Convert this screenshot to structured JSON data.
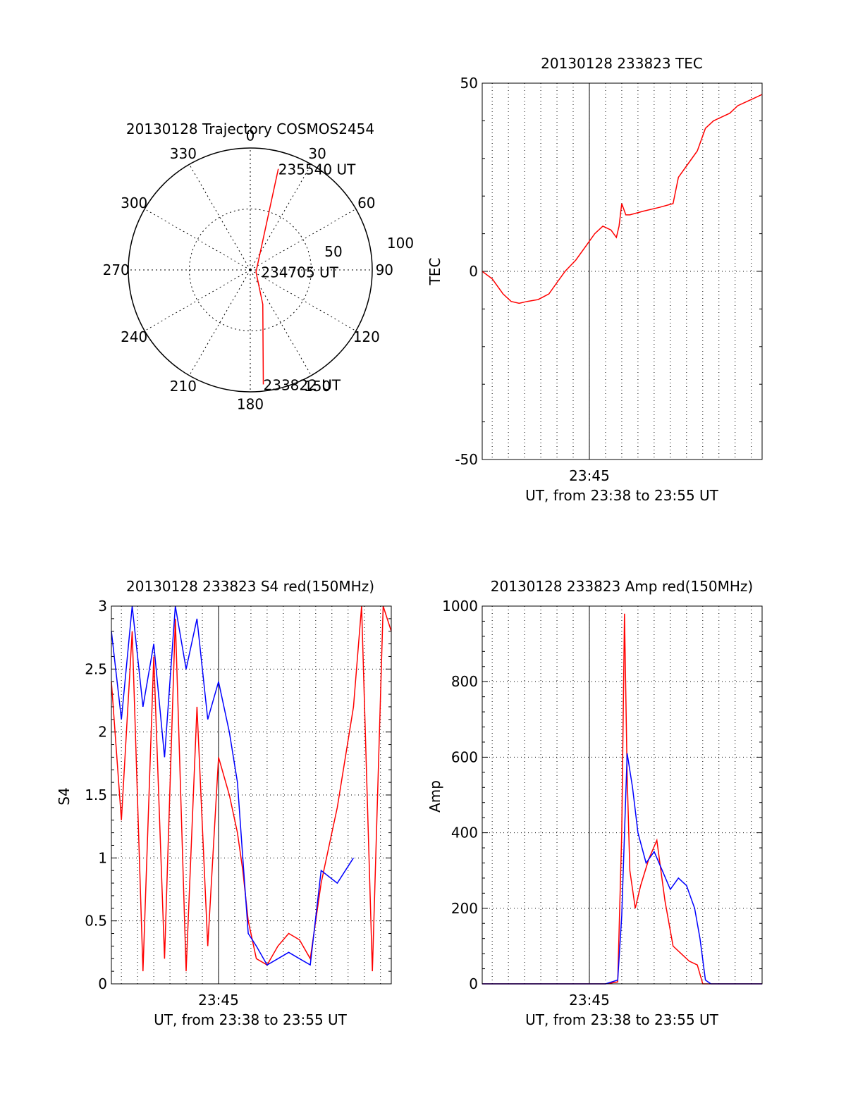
{
  "colors": {
    "primary": "#ff0000",
    "secondary": "#0000ff",
    "axis": "#000000"
  },
  "chart_data": [
    {
      "id": "trajectory",
      "type": "polar",
      "title": "20130128 Trajectory COSMOS2454",
      "azimuth_labels": [
        "0",
        "30",
        "60",
        "90",
        "120",
        "150",
        "180",
        "210",
        "240",
        "270",
        "300",
        "330"
      ],
      "radius_labels": [
        "50",
        "100"
      ],
      "radius_max": 100,
      "track": [
        {
          "az": 173.5,
          "r": 94.5
        },
        {
          "az": 160,
          "r": 30
        },
        {
          "az": 110,
          "r": 5
        },
        {
          "az": 15.5,
          "r": 86
        }
      ],
      "annotations": [
        {
          "text": "235540 UT",
          "az": 15.5,
          "r": 86
        },
        {
          "text": "234705 UT",
          "az": 100,
          "r": 9
        },
        {
          "text": "233822 UT",
          "az": 173.5,
          "r": 94.5
        }
      ]
    },
    {
      "id": "tec",
      "type": "line",
      "title": "20130128 233823 TEC",
      "xlabel": "UT, from 23:38 to 23:55 UT",
      "ylabel": "TEC",
      "xlim": [
        "23:38:23",
        "23:55:40"
      ],
      "ylim": [
        -50,
        50
      ],
      "yticks": [
        "-50",
        "0",
        "50"
      ],
      "xtick_label": "23:45",
      "series": [
        {
          "color": "#ff0000",
          "x": [
            "23:38:23",
            "23:39:00",
            "23:39:40",
            "23:40:10",
            "23:40:40",
            "23:41:10",
            "23:41:50",
            "23:42:30",
            "23:43:00",
            "23:43:30",
            "23:44:10",
            "23:44:50",
            "23:45:20",
            "23:45:50",
            "23:46:20",
            "23:46:40",
            "23:46:50",
            "23:47:00",
            "23:47:10",
            "23:47:15",
            "23:47:30",
            "23:48:20",
            "23:49:20",
            "23:50:10",
            "23:50:30",
            "23:51:00",
            "23:51:40",
            "23:52:10",
            "23:52:40",
            "23:53:10",
            "23:53:40",
            "23:54:10",
            "23:54:40",
            "23:55:10",
            "23:55:40"
          ],
          "values": [
            0,
            -2,
            -6,
            -8,
            -8.5,
            -8,
            -7.5,
            -6,
            -3,
            0,
            3,
            7,
            10,
            12,
            11,
            9,
            12,
            18,
            16,
            15,
            15,
            16,
            17,
            18,
            25,
            28,
            32,
            38,
            40,
            41,
            42,
            44,
            45,
            46,
            47
          ]
        }
      ]
    },
    {
      "id": "s4",
      "type": "line",
      "title": "20130128 233823 S4 red(150MHz)",
      "xlabel": "UT, from 23:38 to 23:55 UT",
      "ylabel": "S4",
      "xlim": [
        "23:38:23",
        "23:55:40"
      ],
      "ylim": [
        0,
        3
      ],
      "yticks": [
        "0",
        "0.5",
        "1",
        "1.5",
        "2",
        "2.5",
        "3"
      ],
      "xtick_label": "23:45",
      "series": [
        {
          "color": "#ff0000",
          "x": [
            "23:38:23",
            "23:39:00",
            "23:39:40",
            "23:40:20",
            "23:41:00",
            "23:41:40",
            "23:42:20",
            "23:43:00",
            "23:43:40",
            "23:44:20",
            "23:45:00",
            "23:45:40",
            "23:46:10",
            "23:46:30",
            "23:46:50",
            "23:47:20",
            "23:48:00",
            "23:48:40",
            "23:49:20",
            "23:50:00",
            "23:50:40",
            "23:51:20",
            "23:51:50",
            "23:52:20",
            "23:52:50",
            "23:53:20",
            "23:53:50",
            "23:54:30",
            "23:55:10",
            "23:55:40"
          ],
          "values": [
            2.4,
            1.3,
            2.8,
            0.1,
            2.6,
            0.2,
            2.9,
            0.1,
            2.2,
            0.3,
            1.8,
            1.5,
            1.2,
            0.9,
            0.5,
            0.2,
            0.15,
            0.3,
            0.4,
            0.35,
            0.2,
            0.8,
            1.1,
            1.4,
            1.8,
            2.2,
            3,
            0.1,
            3,
            2.8
          ]
        },
        {
          "color": "#0000ff",
          "x": [
            "23:38:23",
            "23:39:00",
            "23:39:40",
            "23:40:20",
            "23:41:00",
            "23:41:40",
            "23:42:20",
            "23:43:00",
            "23:43:40",
            "23:44:20",
            "23:45:00",
            "23:45:40",
            "23:46:10",
            "23:46:30",
            "23:46:50",
            "23:47:20",
            "23:48:00",
            "23:48:40",
            "23:49:20",
            "23:50:00",
            "23:50:40",
            "23:51:20",
            "23:51:50",
            "23:52:20",
            "23:52:50",
            "23:53:20"
          ],
          "values": [
            2.8,
            2.1,
            3,
            2.2,
            2.7,
            1.8,
            3,
            2.5,
            2.9,
            2.1,
            2.4,
            2,
            1.6,
            1,
            0.4,
            0.3,
            0.15,
            0.2,
            0.25,
            0.2,
            0.15,
            0.9,
            0.85,
            0.8,
            0.9,
            1
          ]
        }
      ]
    },
    {
      "id": "amp",
      "type": "line",
      "title": "20130128 233823 Amp red(150MHz)",
      "xlabel": "UT, from 23:38 to 23:55 UT",
      "ylabel": "Amp",
      "xlim": [
        "23:38:23",
        "23:55:40"
      ],
      "ylim": [
        0,
        1000
      ],
      "yticks": [
        "0",
        "200",
        "400",
        "600",
        "800",
        "1000"
      ],
      "xtick_label": "23:45",
      "series": [
        {
          "color": "#ff0000",
          "x": [
            "23:38:23",
            "23:45:00",
            "23:46:00",
            "23:46:45",
            "23:47:00",
            "23:47:10",
            "23:47:20",
            "23:47:30",
            "23:47:50",
            "23:48:10",
            "23:48:40",
            "23:49:10",
            "23:49:40",
            "23:50:10",
            "23:50:40",
            "23:51:10",
            "23:51:40",
            "23:52:00",
            "23:52:30",
            "23:55:40"
          ],
          "values": [
            0,
            0,
            0,
            5,
            400,
            980,
            550,
            300,
            200,
            260,
            330,
            380,
            220,
            100,
            80,
            60,
            50,
            0,
            0,
            0
          ]
        },
        {
          "color": "#0000ff",
          "x": [
            "23:38:23",
            "23:45:00",
            "23:46:00",
            "23:46:45",
            "23:47:00",
            "23:47:20",
            "23:47:40",
            "23:48:00",
            "23:48:30",
            "23:49:00",
            "23:49:30",
            "23:50:00",
            "23:50:30",
            "23:51:00",
            "23:51:30",
            "23:51:50",
            "23:52:10",
            "23:52:30",
            "23:55:40"
          ],
          "values": [
            0,
            0,
            0,
            10,
            180,
            610,
            520,
            400,
            320,
            350,
            300,
            250,
            280,
            260,
            200,
            120,
            10,
            0,
            0
          ]
        }
      ]
    }
  ]
}
